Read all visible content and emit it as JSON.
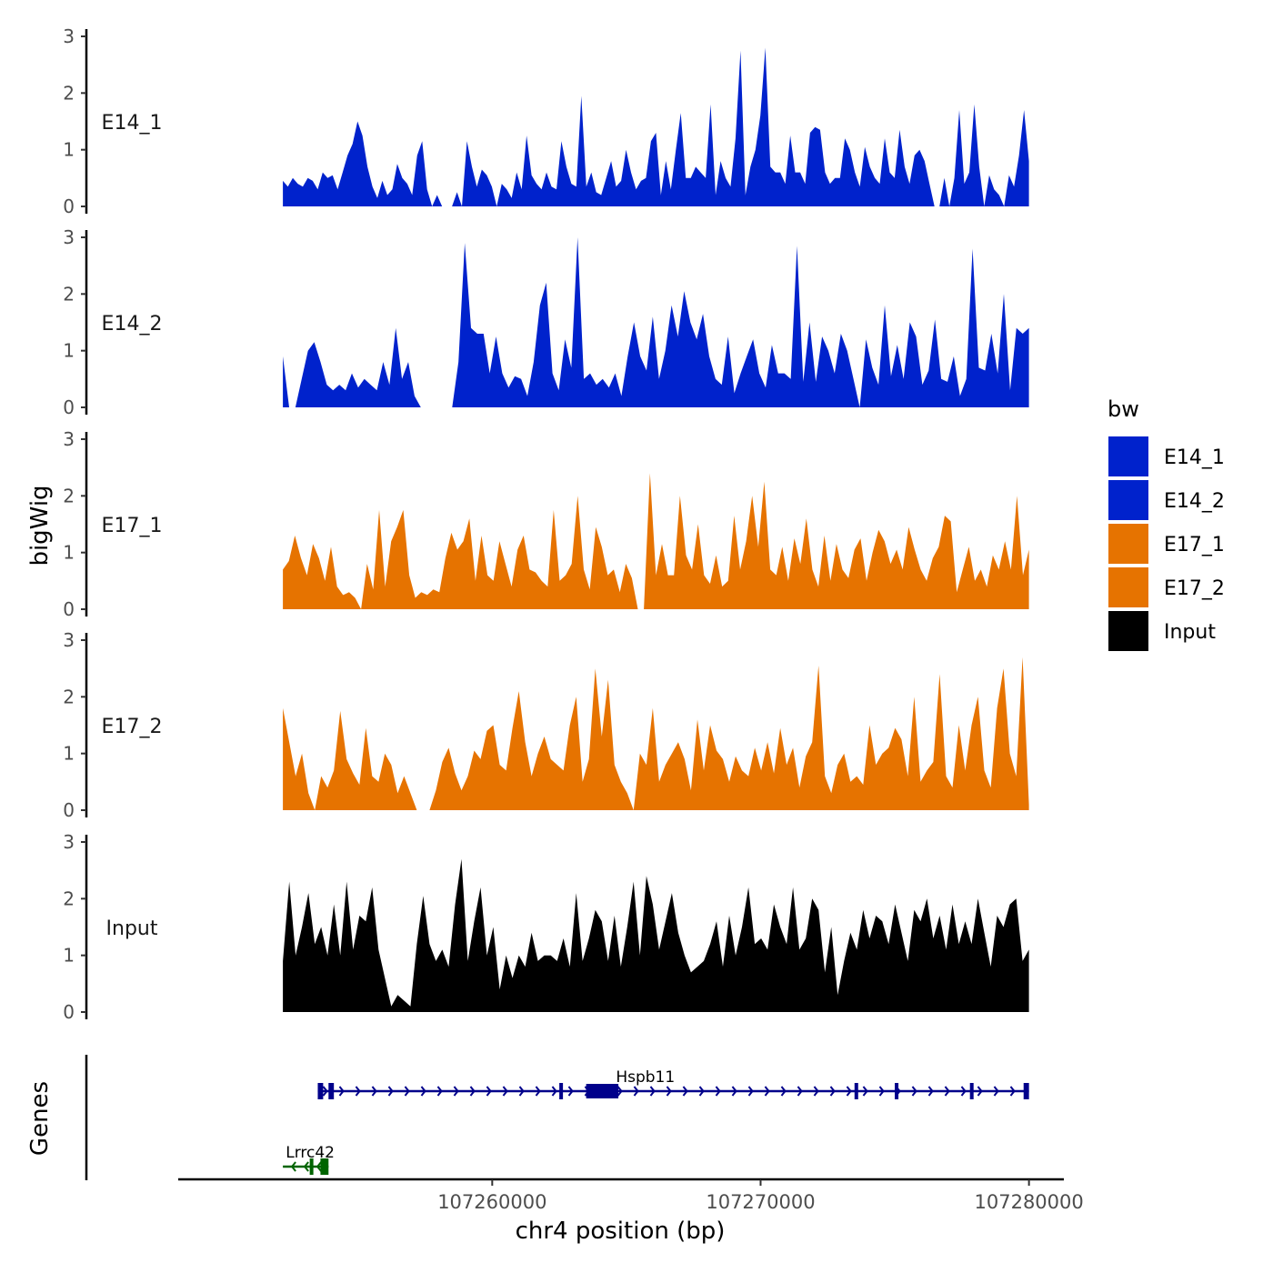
{
  "chart_data": {
    "type": "area",
    "title": "",
    "ylabel": "bigWig",
    "xlabel": "chr4 position (bp)",
    "genes_label": "Genes",
    "ylim": [
      0,
      3
    ],
    "yticks": [
      0,
      1,
      2,
      3
    ],
    "xlim": [
      107248300,
      107281300
    ],
    "xticks": [
      107260000,
      107270000,
      107280000
    ],
    "x_range": [
      107252200,
      107280000
    ],
    "legend": {
      "title": "bw",
      "position": "right",
      "entries": [
        {
          "name": "E14_1",
          "color": "#0022cc"
        },
        {
          "name": "E14_2",
          "color": "#0022cc"
        },
        {
          "name": "E17_1",
          "color": "#e67300"
        },
        {
          "name": "E17_2",
          "color": "#e67300"
        },
        {
          "name": "Input",
          "color": "#000000"
        }
      ]
    },
    "series": [
      {
        "name": "E14_1",
        "color": "#0022cc",
        "values": [
          0.45,
          0.35,
          0.5,
          0.4,
          0.35,
          0.5,
          0.45,
          0.3,
          0.6,
          0.5,
          0.55,
          0.3,
          0.6,
          0.9,
          1.1,
          1.5,
          1.25,
          0.7,
          0.35,
          0.15,
          0.45,
          0.2,
          0.3,
          0.75,
          0.5,
          0.4,
          0.2,
          0.9,
          1.15,
          0.3,
          0,
          0.2,
          0,
          0,
          0,
          0.25,
          0,
          1.15,
          0.7,
          0.35,
          0.65,
          0.55,
          0.35,
          0,
          0.4,
          0.3,
          0.15,
          0.6,
          0.3,
          1.25,
          0.55,
          0.4,
          0.3,
          0.6,
          0.35,
          0.3,
          1.15,
          0.7,
          0.4,
          0.35,
          1.95,
          0.35,
          0.6,
          0.25,
          0.2,
          0.5,
          0.8,
          0.35,
          0.45,
          1.0,
          0.6,
          0.3,
          0.45,
          0.5,
          1.15,
          1.3,
          0.2,
          0.8,
          0.3,
          1.0,
          1.65,
          0.5,
          0.5,
          0.7,
          0.6,
          0.5,
          1.8,
          0.2,
          0.8,
          0.5,
          0.35,
          1.2,
          2.75,
          0.2,
          0.7,
          1.0,
          1.6,
          2.8,
          0.7,
          0.6,
          0.6,
          0.4,
          1.25,
          0.6,
          0.6,
          0.4,
          1.3,
          1.4,
          1.35,
          0.6,
          0.4,
          0.5,
          0.5,
          1.2,
          1.0,
          0.6,
          0.35,
          1.05,
          0.7,
          0.5,
          0.4,
          1.2,
          0.6,
          0.5,
          1.35,
          0.7,
          0.4,
          0.9,
          1.0,
          0.8,
          0.4,
          0,
          0,
          0.5,
          0,
          0.5,
          1.7,
          0.4,
          0.6,
          1.8,
          0.7,
          0,
          0.55,
          0.3,
          0.2,
          0,
          0.55,
          0.35,
          0.9,
          1.7,
          0.8
        ]
      },
      {
        "name": "E14_2",
        "color": "#0022cc",
        "values": [
          0.9,
          0,
          0,
          0.5,
          1.0,
          1.15,
          0.8,
          0.4,
          0.3,
          0.4,
          0.3,
          0.6,
          0.35,
          0.5,
          0.4,
          0.3,
          0.8,
          0.4,
          1.4,
          0.5,
          0.8,
          0.2,
          0,
          0,
          0,
          0,
          0,
          0,
          0.8,
          2.9,
          1.4,
          1.3,
          1.3,
          0.6,
          1.25,
          0.6,
          0.35,
          0.55,
          0.5,
          0.2,
          0.8,
          1.8,
          2.2,
          0.6,
          0.3,
          1.2,
          0.7,
          3.0,
          0.5,
          0.6,
          0.4,
          0.5,
          0.35,
          0.6,
          0.2,
          0.9,
          1.5,
          0.9,
          0.65,
          1.6,
          0.5,
          1.0,
          1.8,
          1.25,
          2.05,
          1.5,
          1.2,
          1.65,
          0.9,
          0.5,
          0.4,
          1.25,
          0.25,
          0.6,
          0.9,
          1.2,
          0.6,
          0.35,
          1.1,
          0.6,
          0.6,
          0.5,
          2.85,
          0.45,
          1.5,
          0.45,
          1.25,
          1.0,
          0.6,
          1.3,
          1.0,
          0.5,
          0,
          1.2,
          0.7,
          0.4,
          1.8,
          0.55,
          1.1,
          0.5,
          1.5,
          1.25,
          0.4,
          0.65,
          1.55,
          0.5,
          0.45,
          0.9,
          0.2,
          0.5,
          2.8,
          0.7,
          0.65,
          1.3,
          0.6,
          2.0,
          0.3,
          1.4,
          1.3,
          1.4
        ]
      },
      {
        "name": "E17_1",
        "color": "#e67300",
        "values": [
          0.7,
          0.85,
          1.3,
          0.9,
          0.6,
          1.15,
          0.9,
          0.5,
          1.1,
          0.4,
          0.25,
          0.3,
          0.2,
          0,
          0.8,
          0.35,
          1.75,
          0.4,
          1.2,
          1.45,
          1.75,
          0.6,
          0.2,
          0.3,
          0.25,
          0.35,
          0.3,
          0.9,
          1.35,
          1.05,
          1.2,
          1.6,
          0.5,
          1.3,
          0.6,
          0.5,
          1.2,
          0.8,
          0.4,
          1.05,
          1.3,
          0.7,
          0.65,
          0.5,
          0.4,
          1.75,
          0.5,
          0.6,
          0.8,
          2.0,
          0.7,
          0.35,
          1.45,
          1.1,
          0.6,
          0.7,
          0.3,
          0.8,
          0.55,
          0,
          0,
          2.4,
          0.6,
          1.15,
          0.6,
          0.6,
          2.0,
          0.95,
          0.7,
          1.5,
          0.6,
          0.45,
          0.95,
          0.4,
          0.5,
          1.65,
          0.7,
          1.2,
          2.0,
          1.1,
          2.25,
          0.7,
          0.6,
          1.1,
          0.5,
          1.25,
          0.8,
          1.6,
          0.7,
          0.4,
          1.3,
          0.5,
          1.15,
          0.7,
          0.55,
          1.05,
          1.25,
          0.5,
          1.0,
          1.4,
          1.2,
          0.8,
          1.05,
          0.7,
          1.45,
          1.05,
          0.7,
          0.5,
          0.9,
          1.1,
          1.65,
          1.55,
          0.3,
          0.7,
          1.1,
          0.5,
          0.7,
          0.4,
          0.95,
          0.7,
          1.2,
          0.7,
          2.0,
          0.6,
          1.05
        ]
      },
      {
        "name": "E17_2",
        "color": "#e67300",
        "values": [
          1.8,
          1.2,
          0.6,
          1.0,
          0.3,
          0,
          0.6,
          0.4,
          0.7,
          1.75,
          0.9,
          0.65,
          0.45,
          1.45,
          0.6,
          0.5,
          1.0,
          0.8,
          0.3,
          0.6,
          0.3,
          0,
          0,
          0,
          0.35,
          0.85,
          1.1,
          0.65,
          0.35,
          0.6,
          1.05,
          0.9,
          1.4,
          1.5,
          0.8,
          0.7,
          1.45,
          2.1,
          1.2,
          0.6,
          1.0,
          1.3,
          0.9,
          0.8,
          0.7,
          1.5,
          2.0,
          0.5,
          0.9,
          2.5,
          1.3,
          2.3,
          0.8,
          0.5,
          0.3,
          0,
          1.0,
          0.8,
          1.8,
          0.5,
          0.8,
          1.0,
          1.2,
          0.9,
          0.35,
          1.6,
          0.7,
          1.5,
          1.05,
          0.9,
          0.5,
          0.95,
          0.7,
          0.6,
          1.1,
          0.7,
          1.2,
          0.65,
          1.45,
          0.8,
          1.1,
          0.4,
          0.95,
          1.2,
          2.55,
          0.6,
          0.3,
          0.8,
          1.0,
          0.5,
          0.6,
          0.45,
          1.5,
          0.8,
          1.0,
          1.1,
          1.45,
          1.25,
          0.6,
          2.0,
          0.5,
          0.7,
          0.85,
          2.4,
          0.6,
          0.4,
          1.5,
          0.7,
          1.5,
          2.0,
          0.7,
          0.4,
          1.8,
          2.5,
          1.0,
          0.6,
          2.7,
          0.1
        ]
      },
      {
        "name": "Input",
        "color": "#000000",
        "values": [
          0.9,
          2.3,
          1.0,
          1.5,
          2.1,
          1.2,
          1.5,
          1.0,
          1.9,
          1.0,
          2.3,
          1.1,
          1.7,
          1.6,
          2.2,
          1.1,
          0.6,
          0.1,
          0.3,
          0.2,
          0.1,
          1.2,
          2.05,
          1.2,
          0.9,
          1.1,
          0.8,
          1.9,
          2.7,
          0.9,
          1.6,
          2.2,
          1.0,
          1.5,
          0.4,
          1.0,
          0.6,
          1.0,
          0.8,
          1.4,
          0.9,
          1.0,
          1.0,
          0.9,
          1.3,
          0.8,
          2.1,
          0.9,
          1.3,
          1.8,
          1.6,
          0.9,
          1.7,
          0.8,
          1.5,
          2.3,
          1.0,
          2.4,
          1.9,
          1.1,
          1.6,
          2.1,
          1.4,
          1.0,
          0.7,
          0.8,
          0.9,
          1.2,
          1.6,
          0.8,
          1.7,
          1.0,
          1.5,
          2.2,
          1.2,
          1.3,
          1.1,
          1.9,
          1.5,
          1.2,
          2.2,
          1.1,
          1.3,
          2.0,
          1.8,
          0.7,
          1.5,
          0.3,
          0.9,
          1.4,
          1.1,
          1.8,
          1.3,
          1.7,
          1.6,
          1.2,
          1.9,
          1.4,
          0.9,
          1.8,
          1.6,
          2.0,
          1.3,
          1.7,
          1.1,
          1.9,
          1.2,
          1.6,
          1.2,
          2.0,
          1.4,
          0.8,
          1.7,
          1.5,
          1.9,
          2.0,
          0.9,
          1.1
        ]
      }
    ],
    "genes": [
      {
        "name": "Hspb11",
        "color": "#00008b",
        "strand": "+",
        "start": 107253500,
        "end": 107280000,
        "exons": [
          [
            107253500,
            107253700
          ],
          [
            107253900,
            107254100
          ],
          [
            107262500,
            107262600
          ],
          [
            107263500,
            107264700
          ],
          [
            107273500,
            107273600
          ],
          [
            107275000,
            107275100
          ],
          [
            107277800,
            107277900
          ],
          [
            107279800,
            107280000
          ]
        ]
      },
      {
        "name": "Lrrc42",
        "color": "#006400",
        "strand": "-",
        "start": 107252200,
        "end": 107253900,
        "exons": [
          [
            107253200,
            107253300
          ],
          [
            107253600,
            107253900
          ]
        ]
      }
    ]
  }
}
